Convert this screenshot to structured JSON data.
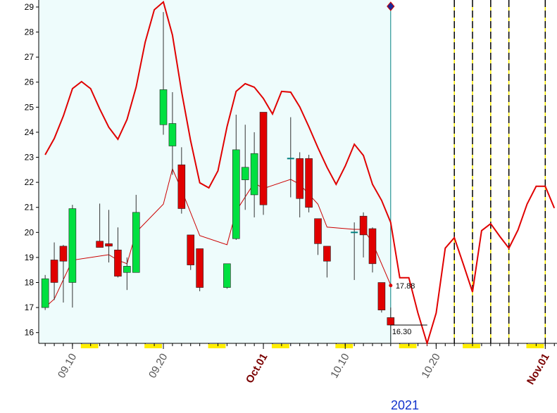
{
  "chart_data": {
    "type": "candlestick",
    "xlabel": "2021",
    "xlim": [
      "2021-09-06T07:00:00Z",
      "2021-11-02T07:00:00Z"
    ],
    "ylim": [
      15.57,
      29.28
    ],
    "yticks": [
      16,
      17,
      18,
      19,
      20,
      21,
      22,
      23,
      24,
      25,
      26,
      27,
      28,
      29
    ],
    "xticks": [
      {
        "value": "2021-09-10",
        "label": "09.10"
      },
      {
        "value": "2021-09-20",
        "label": "09.20"
      },
      {
        "value": "2021-10-01",
        "label": "Oct.01"
      },
      {
        "value": "2021-10-10",
        "label": "10.10"
      },
      {
        "value": "2021-10-20",
        "label": "10.20"
      },
      {
        "value": "2021-11-01",
        "label": "Nov.01"
      }
    ],
    "up_color": "#00e040",
    "down_color": "#e00000",
    "doji_color": "#008080",
    "x": [
      "2021-09-07",
      "2021-09-08",
      "2021-09-09",
      "2021-09-10",
      "2021-09-13",
      "2021-09-14",
      "2021-09-15",
      "2021-09-16",
      "2021-09-17",
      "2021-09-20",
      "2021-09-21",
      "2021-09-22",
      "2021-09-23",
      "2021-09-24",
      "2021-09-27",
      "2021-09-28",
      "2021-09-29",
      "2021-09-30",
      "2021-10-01",
      "2021-10-04",
      "2021-10-05",
      "2021-10-06",
      "2021-10-07",
      "2021-10-08",
      "2021-10-11",
      "2021-10-12",
      "2021-10-13",
      "2021-10-14",
      "2021-10-15"
    ],
    "open": [
      17.0,
      18.9,
      19.45,
      18.0,
      19.65,
      19.55,
      19.3,
      18.4,
      18.4,
      24.3,
      23.45,
      22.7,
      19.9,
      19.35,
      17.8,
      19.75,
      22.1,
      21.5,
      24.8,
      22.95,
      22.95,
      22.95,
      20.55,
      19.45,
      20.0,
      20.65,
      20.15,
      18.0,
      16.6
    ],
    "high": [
      18.3,
      19.6,
      19.5,
      21.1,
      21.15,
      20.9,
      20.2,
      19.0,
      21.5,
      28.8,
      25.6,
      23.4,
      19.9,
      19.35,
      18.75,
      24.7,
      24.3,
      24.0,
      24.8,
      24.6,
      23.2,
      23.1,
      20.55,
      19.45,
      20.4,
      20.8,
      20.2,
      18.0,
      17.0
    ],
    "low": [
      16.9,
      17.3,
      17.2,
      17.0,
      19.4,
      18.8,
      18.2,
      17.7,
      18.4,
      23.9,
      22.3,
      20.75,
      18.5,
      17.65,
      17.75,
      19.7,
      20.9,
      20.6,
      20.7,
      21.4,
      20.6,
      20.8,
      19.1,
      18.2,
      18.1,
      19.0,
      18.4,
      16.8,
      15.5
    ],
    "close": [
      18.15,
      18.0,
      18.85,
      20.95,
      19.4,
      19.45,
      18.25,
      18.65,
      20.8,
      25.7,
      24.35,
      20.95,
      18.7,
      17.8,
      18.75,
      23.3,
      22.6,
      23.15,
      21.1,
      22.95,
      21.35,
      21.0,
      19.55,
      18.85,
      20.0,
      19.9,
      18.75,
      16.9,
      16.3
    ],
    "lines": [
      {
        "color": "#e00000",
        "x": [
          "2021-09-07",
          "2021-09-08",
          "2021-09-09",
          "2021-09-10",
          "2021-09-11",
          "2021-09-12",
          "2021-09-13",
          "2021-09-14",
          "2021-09-15",
          "2021-09-16",
          "2021-09-17",
          "2021-09-18",
          "2021-09-19",
          "2021-09-20",
          "2021-09-21",
          "2021-09-22",
          "2021-09-23",
          "2021-09-24",
          "2021-09-25",
          "2021-09-26",
          "2021-09-27",
          "2021-09-28",
          "2021-09-29",
          "2021-09-30",
          "2021-10-01",
          "2021-10-02",
          "2021-10-03",
          "2021-10-04",
          "2021-10-05",
          "2021-10-06",
          "2021-10-07",
          "2021-10-08",
          "2021-10-09",
          "2021-10-10",
          "2021-10-11",
          "2021-10-12",
          "2021-10-13",
          "2021-10-14",
          "2021-10-15",
          "2021-10-16",
          "2021-10-17",
          "2021-10-18",
          "2021-10-19",
          "2021-10-20",
          "2021-10-21",
          "2021-10-22",
          "2021-10-23",
          "2021-10-24",
          "2021-10-25",
          "2021-10-26",
          "2021-10-27",
          "2021-10-28",
          "2021-10-29",
          "2021-10-30",
          "2021-10-31",
          "2021-11-01",
          "2021-11-02"
        ],
        "values": [
          23.1,
          23.75,
          24.65,
          25.74,
          26.02,
          25.74,
          24.93,
          24.2,
          23.72,
          24.51,
          25.8,
          27.6,
          28.89,
          29.2,
          27.88,
          25.63,
          23.66,
          21.98,
          21.78,
          22.46,
          24.22,
          25.63,
          25.94,
          25.8,
          25.35,
          24.73,
          25.63,
          25.6,
          25.01,
          24.22,
          23.38,
          22.6,
          21.92,
          22.65,
          23.52,
          23.07,
          21.92,
          21.28,
          20.4,
          18.19,
          18.19,
          16.78,
          15.57,
          16.78,
          19.37,
          19.79,
          18.72,
          17.62,
          20.07,
          20.35,
          19.84,
          19.37,
          20.1,
          21.13,
          21.84,
          21.84,
          20.97
        ]
      },
      {
        "color": "#cc0000",
        "x": [
          "2021-09-07",
          "2021-09-08",
          "2021-09-10",
          "2021-09-14",
          "2021-09-15",
          "2021-09-16",
          "2021-09-17",
          "2021-09-20",
          "2021-09-21",
          "2021-09-22",
          "2021-09-24",
          "2021-09-27",
          "2021-09-28",
          "2021-09-30",
          "2021-10-01",
          "2021-10-04",
          "2021-10-05",
          "2021-10-07",
          "2021-10-08",
          "2021-10-11",
          "2021-10-12",
          "2021-10-13",
          "2021-10-15"
        ],
        "values": [
          17.01,
          17.34,
          18.89,
          19.11,
          18.89,
          18.75,
          20.01,
          21.13,
          22.54,
          21.7,
          19.87,
          19.51,
          20.85,
          21.98,
          21.75,
          22.12,
          21.92,
          21.13,
          20.21,
          20.12,
          20.12,
          19.59,
          17.9
        ]
      }
    ],
    "annotations": [
      {
        "x": "2021-10-15",
        "value": 17.88,
        "label": "17.88"
      },
      {
        "x": "2021-10-15",
        "value": 16.3,
        "label": "16.30"
      }
    ],
    "current": "2021-10-15",
    "markers": [
      "2021-10-22",
      "2021-10-24",
      "2021-10-26",
      "2021-10-28",
      "2021-11-01"
    ]
  }
}
